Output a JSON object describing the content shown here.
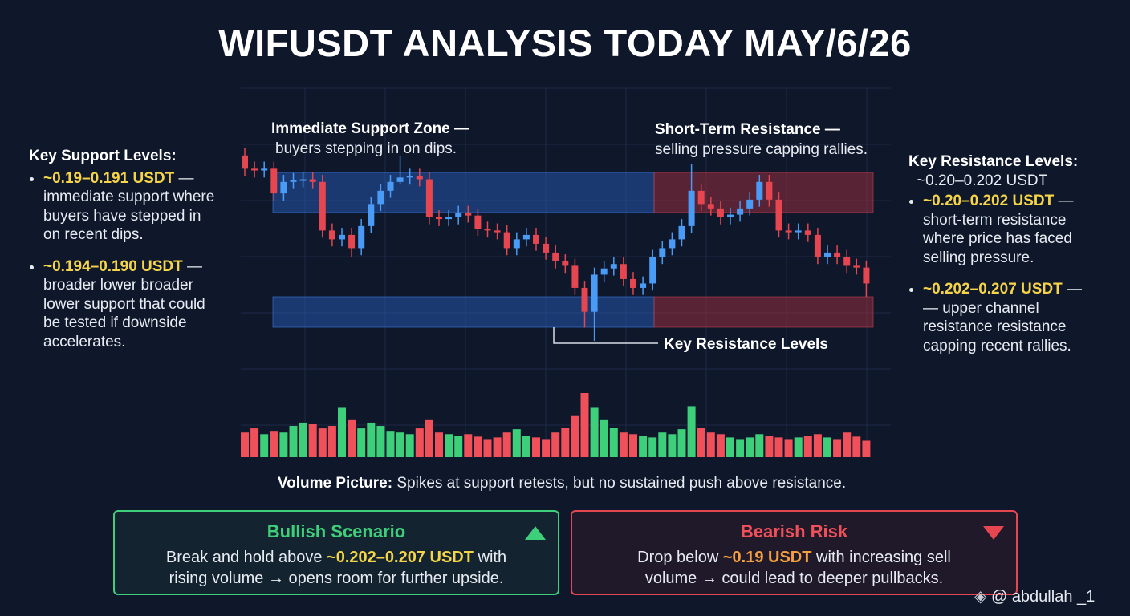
{
  "chart_data": {
    "type": "candlestick",
    "title": "WIFUSDT ANALYSIS TODAY MAY/6/26",
    "annotations": {
      "support_zone_title": "Immediate Support Zone —",
      "support_zone_text": "buyers stepping in on dips.",
      "resistance_zone_title": "Short-Term Resistance —",
      "resistance_zone_text": "selling pressure capping rallies.",
      "pointer_label": "Key Resistance Levels"
    },
    "open": [
      235,
      220,
      218,
      220,
      192,
      205,
      207,
      208,
      205,
      150,
      140,
      145,
      130,
      155,
      180,
      195,
      205,
      210,
      212,
      208,
      165,
      163,
      165,
      170,
      167,
      152,
      150,
      148,
      130,
      140,
      145,
      135,
      125,
      115,
      110,
      85,
      58,
      100,
      107,
      112,
      95,
      85,
      90,
      120,
      130,
      140,
      155,
      195,
      180,
      175,
      165,
      168,
      175,
      185,
      205,
      185,
      150,
      148,
      150,
      145,
      120,
      125,
      120,
      110,
      108
    ],
    "high": [
      243,
      228,
      228,
      228,
      213,
      215,
      216,
      216,
      213,
      158,
      153,
      153,
      163,
      188,
      203,
      213,
      235,
      220,
      220,
      216,
      173,
      173,
      178,
      178,
      175,
      160,
      158,
      156,
      148,
      153,
      153,
      143,
      133,
      123,
      118,
      93,
      108,
      115,
      120,
      120,
      103,
      98,
      128,
      138,
      148,
      163,
      225,
      203,
      188,
      183,
      176,
      183,
      193,
      213,
      213,
      193,
      158,
      158,
      158,
      153,
      133,
      133,
      128,
      118,
      116
    ],
    "low": [
      212,
      210,
      210,
      184,
      184,
      197,
      199,
      197,
      142,
      132,
      132,
      120,
      122,
      147,
      172,
      187,
      202,
      202,
      200,
      157,
      155,
      155,
      157,
      159,
      144,
      142,
      140,
      122,
      122,
      132,
      127,
      117,
      107,
      102,
      77,
      40,
      25,
      92,
      99,
      87,
      77,
      77,
      82,
      112,
      122,
      132,
      147,
      172,
      167,
      157,
      157,
      160,
      167,
      177,
      177,
      142,
      140,
      140,
      137,
      112,
      112,
      112,
      102,
      100,
      75
    ],
    "close": [
      220,
      218,
      220,
      192,
      205,
      207,
      208,
      205,
      150,
      140,
      145,
      130,
      155,
      180,
      195,
      205,
      210,
      212,
      208,
      165,
      163,
      165,
      170,
      167,
      152,
      150,
      148,
      130,
      140,
      145,
      135,
      125,
      115,
      110,
      85,
      58,
      100,
      107,
      112,
      95,
      85,
      90,
      120,
      130,
      140,
      155,
      195,
      180,
      175,
      165,
      168,
      175,
      185,
      205,
      185,
      150,
      148,
      150,
      145,
      120,
      125,
      120,
      110,
      108,
      90
    ],
    "volume": [
      30,
      35,
      28,
      32,
      30,
      38,
      42,
      40,
      35,
      38,
      60,
      45,
      35,
      42,
      38,
      32,
      30,
      28,
      35,
      45,
      30,
      28,
      26,
      28,
      25,
      22,
      24,
      30,
      34,
      26,
      24,
      22,
      30,
      36,
      50,
      78,
      60,
      45,
      36,
      30,
      28,
      26,
      24,
      30,
      28,
      34,
      62,
      36,
      30,
      28,
      24,
      22,
      24,
      28,
      26,
      24,
      22,
      24,
      26,
      28,
      24,
      22,
      30,
      25,
      20
    ],
    "up_color": "#4a9bf5",
    "down_color": "#e5464f",
    "volume_up_color": "#3ecf7a",
    "volume_down_color": "#f0505a",
    "volume_note": {
      "label": "Volume Picture:",
      "text": " Spikes at support retests, but no sustained push above resistance."
    }
  },
  "support_panel": {
    "heading": "Key Support Levels:",
    "items": [
      {
        "highlight": "~0.19–0.191 USDT",
        "text": " — immediate support where buyers have stepped in on recent dips."
      },
      {
        "highlight": "~0.194–0.190 USDT",
        "text": " — broader lower broader lower support that could be tested if downside accelerates."
      }
    ]
  },
  "resistance_panel": {
    "heading": "Key Resistance Levels:",
    "subheading": "~0.20–0.202 USDT",
    "items": [
      {
        "highlight": "~0.20–0.202 USDT",
        "text": " — short-term resistance where price has faced selling pressure."
      },
      {
        "highlight": "~0.202–0.207 USDT",
        "text": " — — upper channel resistance resistance capping recent rallies."
      }
    ]
  },
  "bullish": {
    "title": "Bullish Scenario",
    "before": "Break and hold above ",
    "highlight": "~0.202–0.207 USDT",
    "after": " with rising volume → opens room for further upside."
  },
  "bearish": {
    "title": "Bearish Risk",
    "before": "Drop below ",
    "highlight": "~0.19 USDT",
    "after": " with increasing sell volume → could lead to deeper pullbacks."
  },
  "watermark": "@ abdullah _1"
}
